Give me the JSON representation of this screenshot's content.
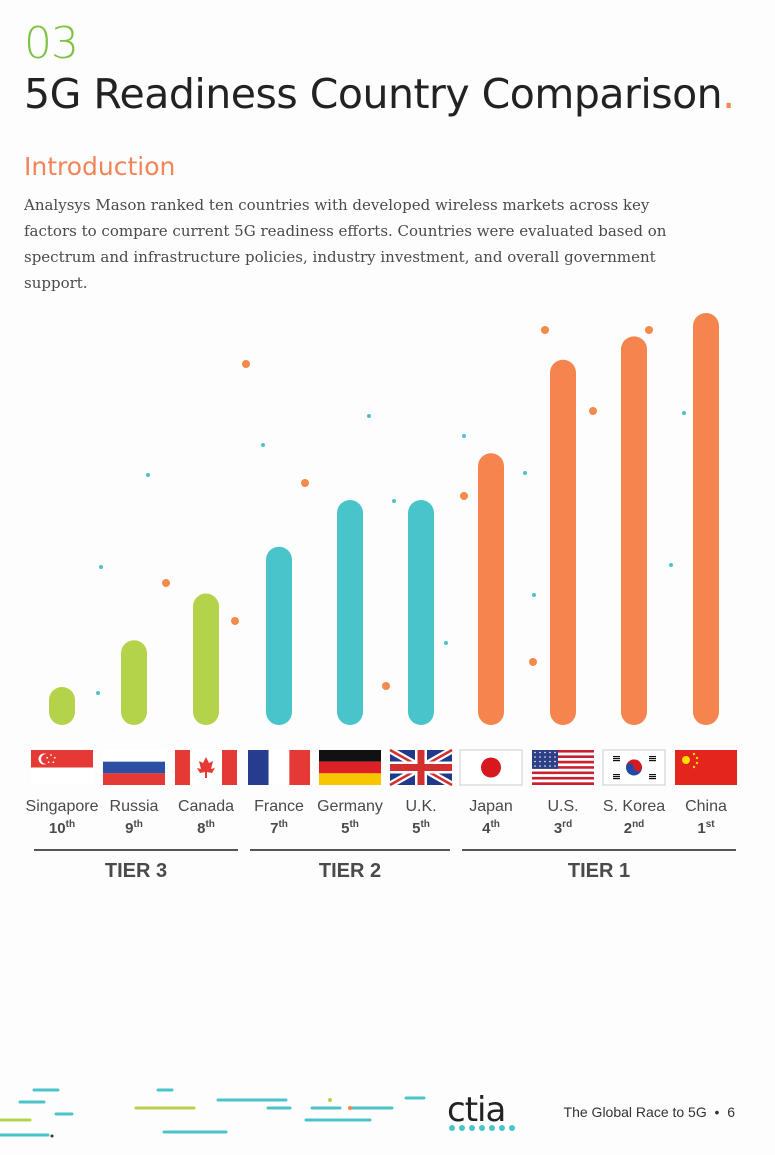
{
  "section_number": "03",
  "title": "5G Readiness Country Comparison",
  "intro_heading": "Introduction",
  "intro_text": "Analysys Mason ranked ten countries with developed wireless markets across key factors to compare current 5G readiness efforts. Countries were evaluated based on spectrum and infrastructure policies, industry investment, and overall government support.",
  "colors": {
    "tier3": "#b5d34a",
    "tier2": "#4ac4cb",
    "tier1": "#f5844f",
    "accent": "#f58a4b"
  },
  "chart_data": {
    "type": "bar",
    "title": "",
    "categories": [
      "Singapore",
      "Russia",
      "Canada",
      "France",
      "Germany",
      "U.K.",
      "Japan",
      "U.S.",
      "S. Korea",
      "China"
    ],
    "ranks": [
      {
        "num": "10",
        "suffix": "th"
      },
      {
        "num": "9",
        "suffix": "th"
      },
      {
        "num": "8",
        "suffix": "th"
      },
      {
        "num": "7",
        "suffix": "th"
      },
      {
        "num": "5",
        "suffix": "th"
      },
      {
        "num": "5",
        "suffix": "th"
      },
      {
        "num": "4",
        "suffix": "th"
      },
      {
        "num": "3",
        "suffix": "rd"
      },
      {
        "num": "2",
        "suffix": "nd"
      },
      {
        "num": "1",
        "suffix": "st"
      }
    ],
    "tiers": [
      "tier3",
      "tier3",
      "tier3",
      "tier2",
      "tier2",
      "tier2",
      "tier1",
      "tier1",
      "tier1",
      "tier1"
    ],
    "values": [
      1,
      2,
      3,
      4,
      5,
      5,
      6,
      8,
      8.5,
      9
    ],
    "ylim": [
      0,
      9
    ],
    "grid": false,
    "flags": [
      "singapore-flag",
      "russia-flag",
      "canada-flag",
      "france-flag",
      "germany-flag",
      "uk-flag",
      "japan-flag",
      "us-flag",
      "south-korea-flag",
      "china-flag"
    ]
  },
  "tier_labels": [
    "TIER 3",
    "TIER 2",
    "TIER 1"
  ],
  "footer": {
    "logo": "ctia",
    "text": "The Global Race to 5G",
    "separator": "•",
    "page": "6"
  }
}
